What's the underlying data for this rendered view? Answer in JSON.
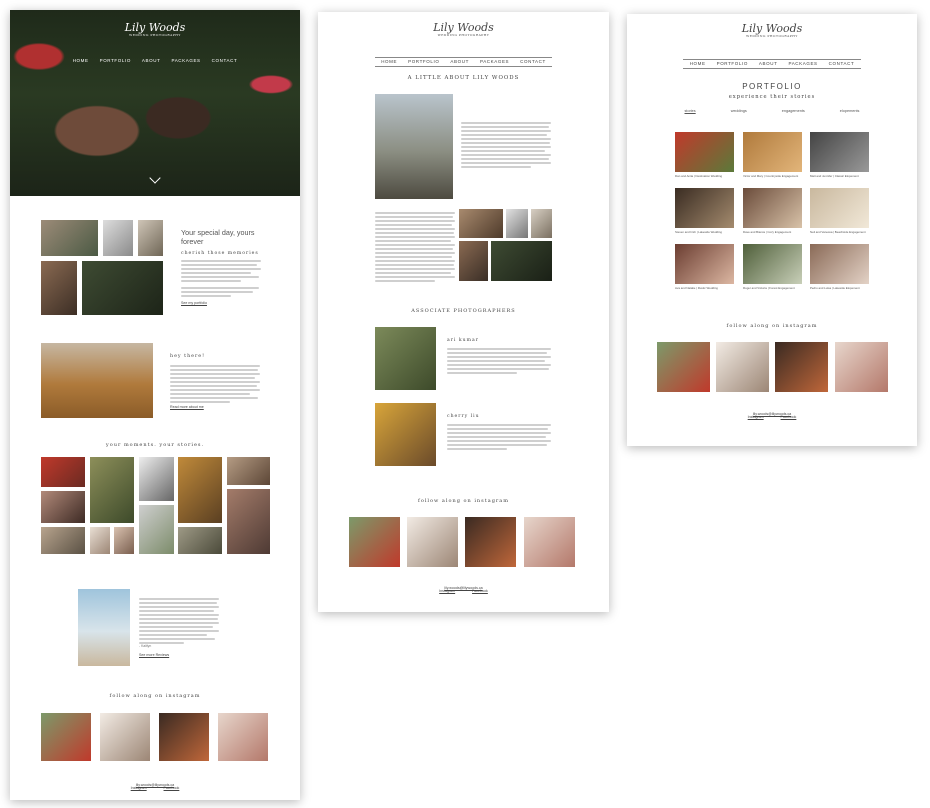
{
  "brand": {
    "logo_script": "Lily Woods",
    "logo_sub": "Wedding Photography"
  },
  "nav": {
    "items": [
      "HOME",
      "PORTFOLIO",
      "ABOUT",
      "PACKAGES",
      "CONTACT"
    ]
  },
  "home": {
    "intro_title": "Your special day, yours forever",
    "intro_subtitle": "cherish those memories",
    "intro_link": "See my portfolio",
    "hey_title": "hey there!",
    "hey_link": "Read more about me",
    "moments_title": "your moments. your stories.",
    "testimonial_author": "- Kaitlyn",
    "testimonial_link": "See more Reviews",
    "instagram_title": "follow along on instagram",
    "footer_links": [
      "Instagram",
      "Facebook"
    ],
    "footer_email": "lily.woods@lilywoods.ca"
  },
  "about": {
    "title": "A LITTLE ABOUT LILY WOODS",
    "associates_title": "ASSOCIATE PHOTOGRAPHERS",
    "associates": [
      {
        "name": "ari kumar"
      },
      {
        "name": "cherry liu"
      }
    ],
    "instagram_title": "follow along on instagram",
    "footer_links": [
      "Instagram",
      "Facebook"
    ],
    "footer_email": "lily.woods@lilywoods.ca"
  },
  "portfolio": {
    "title": "PORTFOLIO",
    "subtitle": "experience their stories",
    "filters": [
      "stories",
      "weddings",
      "engagements",
      "elopements"
    ],
    "items": [
      {
        "caption": "Dan and Anita | Destination Wedding",
        "colors": [
          "#c0392b",
          "#5b7a3a"
        ]
      },
      {
        "caption": "Victor and Mary | Countryside Engagement",
        "colors": [
          "#b07a3c",
          "#e2b57a"
        ]
      },
      {
        "caption": "Matt and Jennifer | Classic Elopement",
        "colors": [
          "#444",
          "#999"
        ]
      },
      {
        "caption": "Steven and Irish | Lakeside Wedding",
        "colors": [
          "#3a2c22",
          "#a48b6e"
        ]
      },
      {
        "caption": "Dave and Bianca | Cozy Engagement",
        "colors": [
          "#6b4c3b",
          "#d8c2a8"
        ]
      },
      {
        "caption": "Neil and Vanessa | Beachside Engagement",
        "colors": [
          "#c9b89e",
          "#f1e8d8"
        ]
      },
      {
        "caption": "Ava and Natalie | Rustic Wedding",
        "colors": [
          "#6b3d31",
          "#dcb7a2"
        ]
      },
      {
        "caption": "Roger and Victoria | Forest Engagement",
        "colors": [
          "#4f5f3a",
          "#c8cfb8"
        ]
      },
      {
        "caption": "Pedro and Luisa | Lakeside Elopement",
        "colors": [
          "#8a6a57",
          "#e3d2c6"
        ]
      }
    ],
    "instagram_title": "follow along on instagram",
    "footer_links": [
      "Instagram",
      "Facebook"
    ],
    "footer_email": "lily.woods@lilywoods.ca"
  },
  "colors": {
    "text": "#333333",
    "rule": "#888888",
    "page_bg": "#ffffff"
  }
}
